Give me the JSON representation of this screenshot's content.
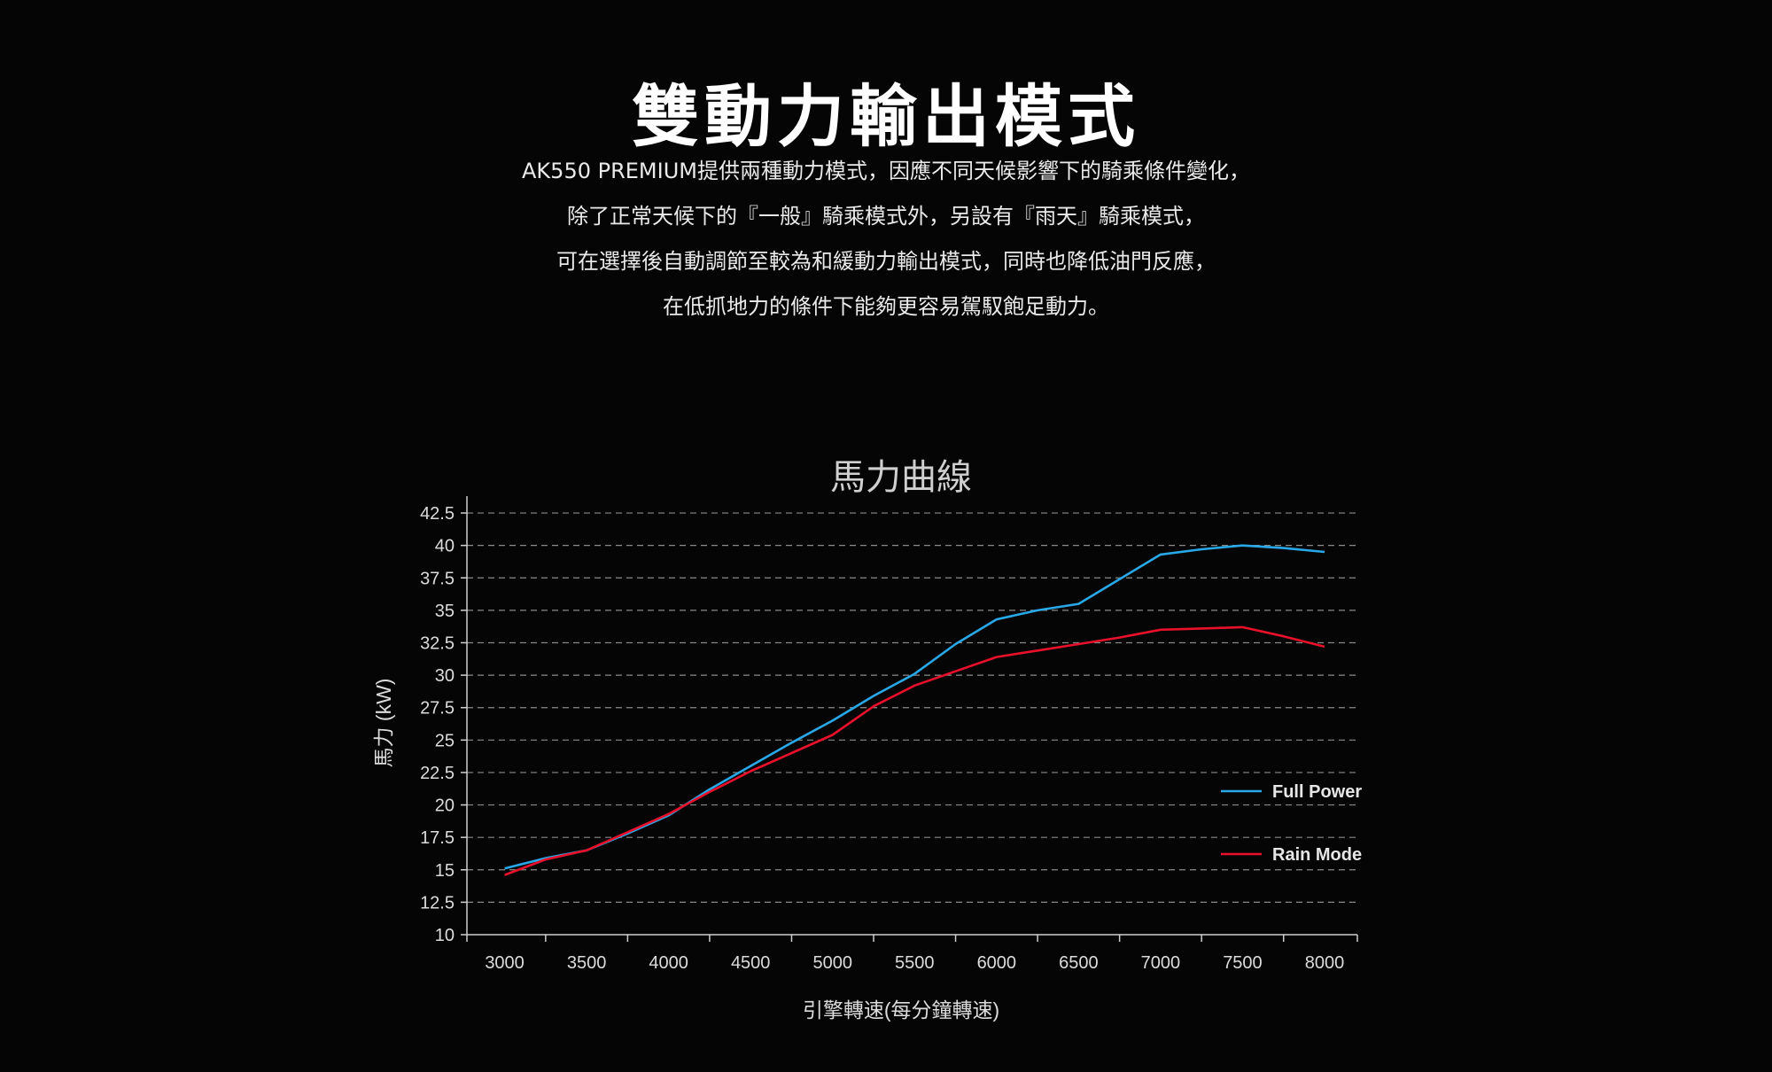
{
  "page": {
    "title": "雙動力輸出模式",
    "intro_lines": [
      "AK550 PREMIUM提供兩種動力模式，因應不同天候影響下的騎乘條件變化，",
      "除了正常天候下的『一般』騎乘模式外，另設有『雨天』騎乘模式，",
      "可在選擇後自動調節至較為和緩動力輸出模式，同時也降低油門反應，",
      "在低抓地力的條件下能夠更容易駕馭飽足動力。"
    ]
  },
  "chart_data": {
    "type": "line",
    "title": "馬力曲線",
    "xlabel": "引擎轉速(每分鐘轉速)",
    "ylabel": "馬力 (kW)",
    "xlim": [
      2770,
      8200
    ],
    "ylim": [
      10,
      43.8
    ],
    "xticks": [
      3000,
      3500,
      4000,
      4500,
      5000,
      5500,
      6000,
      6500,
      7000,
      7500,
      8000
    ],
    "yticks": [
      10,
      12.5,
      15,
      17.5,
      20,
      22.5,
      25,
      27.5,
      30,
      32.5,
      35,
      37.5,
      40,
      42.5
    ],
    "ytick_labels": [
      "10",
      "12.5",
      "15",
      "17.5",
      "20",
      "22.5",
      "25",
      "27.5",
      "30",
      "32.5",
      "35",
      "37.5",
      "40",
      "42.5"
    ],
    "grid": "horizontal dashed",
    "legend_position": "right",
    "series": [
      {
        "name": "Full Power",
        "color": "#29a8e8",
        "x": [
          3000,
          3250,
          3500,
          3750,
          4000,
          4250,
          4500,
          4750,
          5000,
          5250,
          5500,
          5750,
          6000,
          6250,
          6500,
          6750,
          7000,
          7250,
          7500,
          7750,
          8000
        ],
        "y": [
          15.1,
          15.9,
          16.5,
          17.8,
          19.2,
          21.2,
          23.0,
          24.8,
          26.5,
          28.4,
          30.1,
          32.4,
          34.3,
          35.0,
          35.5,
          37.4,
          39.3,
          39.7,
          40.0,
          39.8,
          39.5
        ]
      },
      {
        "name": "Rain Mode",
        "color": "#e8102a",
        "x": [
          3000,
          3250,
          3500,
          3750,
          4000,
          4250,
          4500,
          4750,
          5000,
          5250,
          5500,
          5750,
          6000,
          6250,
          6500,
          6750,
          7000,
          7250,
          7500,
          7750,
          8000
        ],
        "y": [
          14.6,
          15.8,
          16.5,
          17.9,
          19.3,
          21.0,
          22.6,
          24.0,
          25.4,
          27.6,
          29.2,
          30.3,
          31.4,
          31.9,
          32.4,
          32.9,
          33.5,
          33.6,
          33.7,
          33.0,
          32.2
        ]
      }
    ]
  }
}
